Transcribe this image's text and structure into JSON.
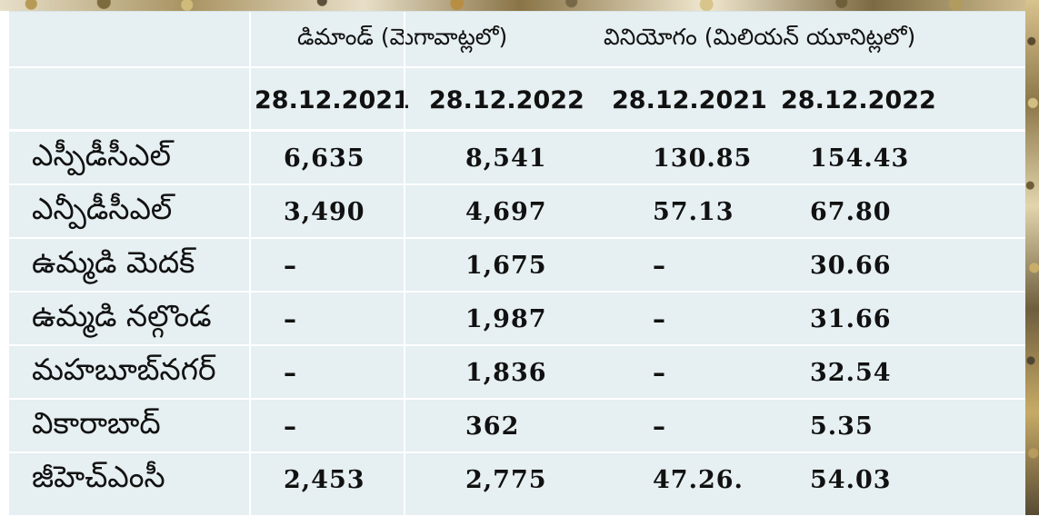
{
  "table": {
    "group_headers": [
      "డిమాండ్ (మెగావాట్లలో)",
      "వినియోగం (మిలియన్ యూనిట్లలో)"
    ],
    "date_headers": [
      "28.12.2021",
      "28.12.2022",
      "28.12.2021",
      "28.12.2022"
    ],
    "rows": [
      {
        "name": "ఎస్పీడీసీఎల్",
        "values": [
          "6,635",
          "8,541",
          "130.85",
          "154.43"
        ]
      },
      {
        "name": "ఎన్పీడీసీఎల్",
        "values": [
          "3,490",
          "4,697",
          "57.13",
          "67.80"
        ]
      },
      {
        "name": "ఉమ్మడి మెదక్",
        "values": [
          "–",
          "1,675",
          "–",
          "30.66"
        ]
      },
      {
        "name": "ఉమ్మడి నల్గొండ",
        "values": [
          "–",
          "1,987",
          "–",
          "31.66"
        ]
      },
      {
        "name": "మహబూబ్‌నగర్",
        "values": [
          "–",
          "1,836",
          "–",
          "32.54"
        ]
      },
      {
        "name": "వికారాబాద్",
        "values": [
          "–",
          "362",
          "–",
          "5.35"
        ]
      },
      {
        "name": "జీహెచ్‌ఎంసీ",
        "values": [
          "2,453",
          "2,775",
          "47.26.",
          "54.03"
        ]
      }
    ]
  },
  "colors": {
    "table_background": "#e6eff1",
    "grid_lines": "#ffffff",
    "text": "#111111"
  }
}
